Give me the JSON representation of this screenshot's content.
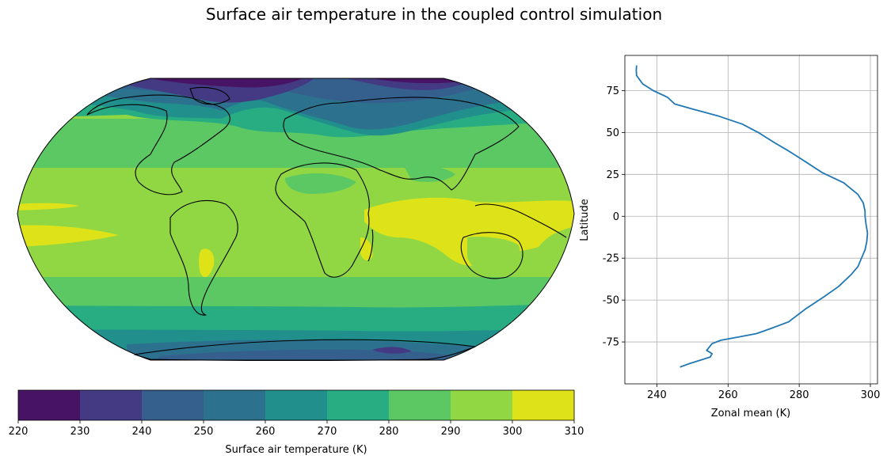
{
  "figure": {
    "title": "Surface air temperature in the coupled control simulation"
  },
  "chart_data": [
    {
      "type": "heatmap",
      "description_kind": "global map (Robinson projection) of filled contours",
      "colorbar": {
        "label": "Surface air temperature (K)",
        "levels": [
          220,
          230,
          240,
          250,
          260,
          270,
          280,
          290,
          300,
          310
        ],
        "tick_labels": [
          "220",
          "230",
          "240",
          "250",
          "260",
          "270",
          "280",
          "290",
          "300",
          "310"
        ],
        "colors": [
          "#471365",
          "#443a83",
          "#355f8d",
          "#2c728e",
          "#21908d",
          "#27ad81",
          "#5cc863",
          "#90d743",
          "#dde318"
        ]
      },
      "coastlines": true
    },
    {
      "type": "line",
      "xlabel": "Zonal mean (K)",
      "ylabel": "Latitude",
      "xlim": [
        231,
        302
      ],
      "ylim": [
        -100,
        96
      ],
      "xticks": [
        "240",
        "260",
        "280",
        "300"
      ],
      "xtick_values": [
        240,
        260,
        280,
        300
      ],
      "yticks": [
        "-75",
        "-50",
        "-25",
        "0",
        "25",
        "50",
        "75"
      ],
      "ytick_values": [
        -75,
        -50,
        -25,
        0,
        25,
        50,
        75
      ],
      "grid": true,
      "color": "#1f77b4",
      "series": [
        {
          "x": [
            246.5,
            249,
            252,
            255,
            255.5,
            254,
            255.5,
            258,
            263,
            268,
            272,
            277,
            282,
            287,
            291,
            294.5,
            296.5,
            297.5,
            298.5,
            299,
            299.2,
            298.8,
            298.5,
            298.5,
            298,
            296.5,
            292.5,
            286.5,
            280,
            277,
            273,
            268.5,
            264,
            257,
            250,
            245,
            243,
            239,
            236,
            234.3,
            234.2,
            234.3
          ],
          "y": [
            -90,
            -88,
            -86,
            -84,
            -82,
            -80,
            -76,
            -74,
            -72,
            -70,
            -67,
            -63,
            -55,
            -48,
            -42,
            -35,
            -30,
            -25,
            -20,
            -15,
            -10,
            -5,
            0,
            3,
            8,
            13,
            20,
            26,
            35,
            39,
            44,
            50,
            55,
            60,
            64,
            67,
            71,
            75,
            79,
            84,
            87,
            90
          ]
        }
      ]
    }
  ]
}
